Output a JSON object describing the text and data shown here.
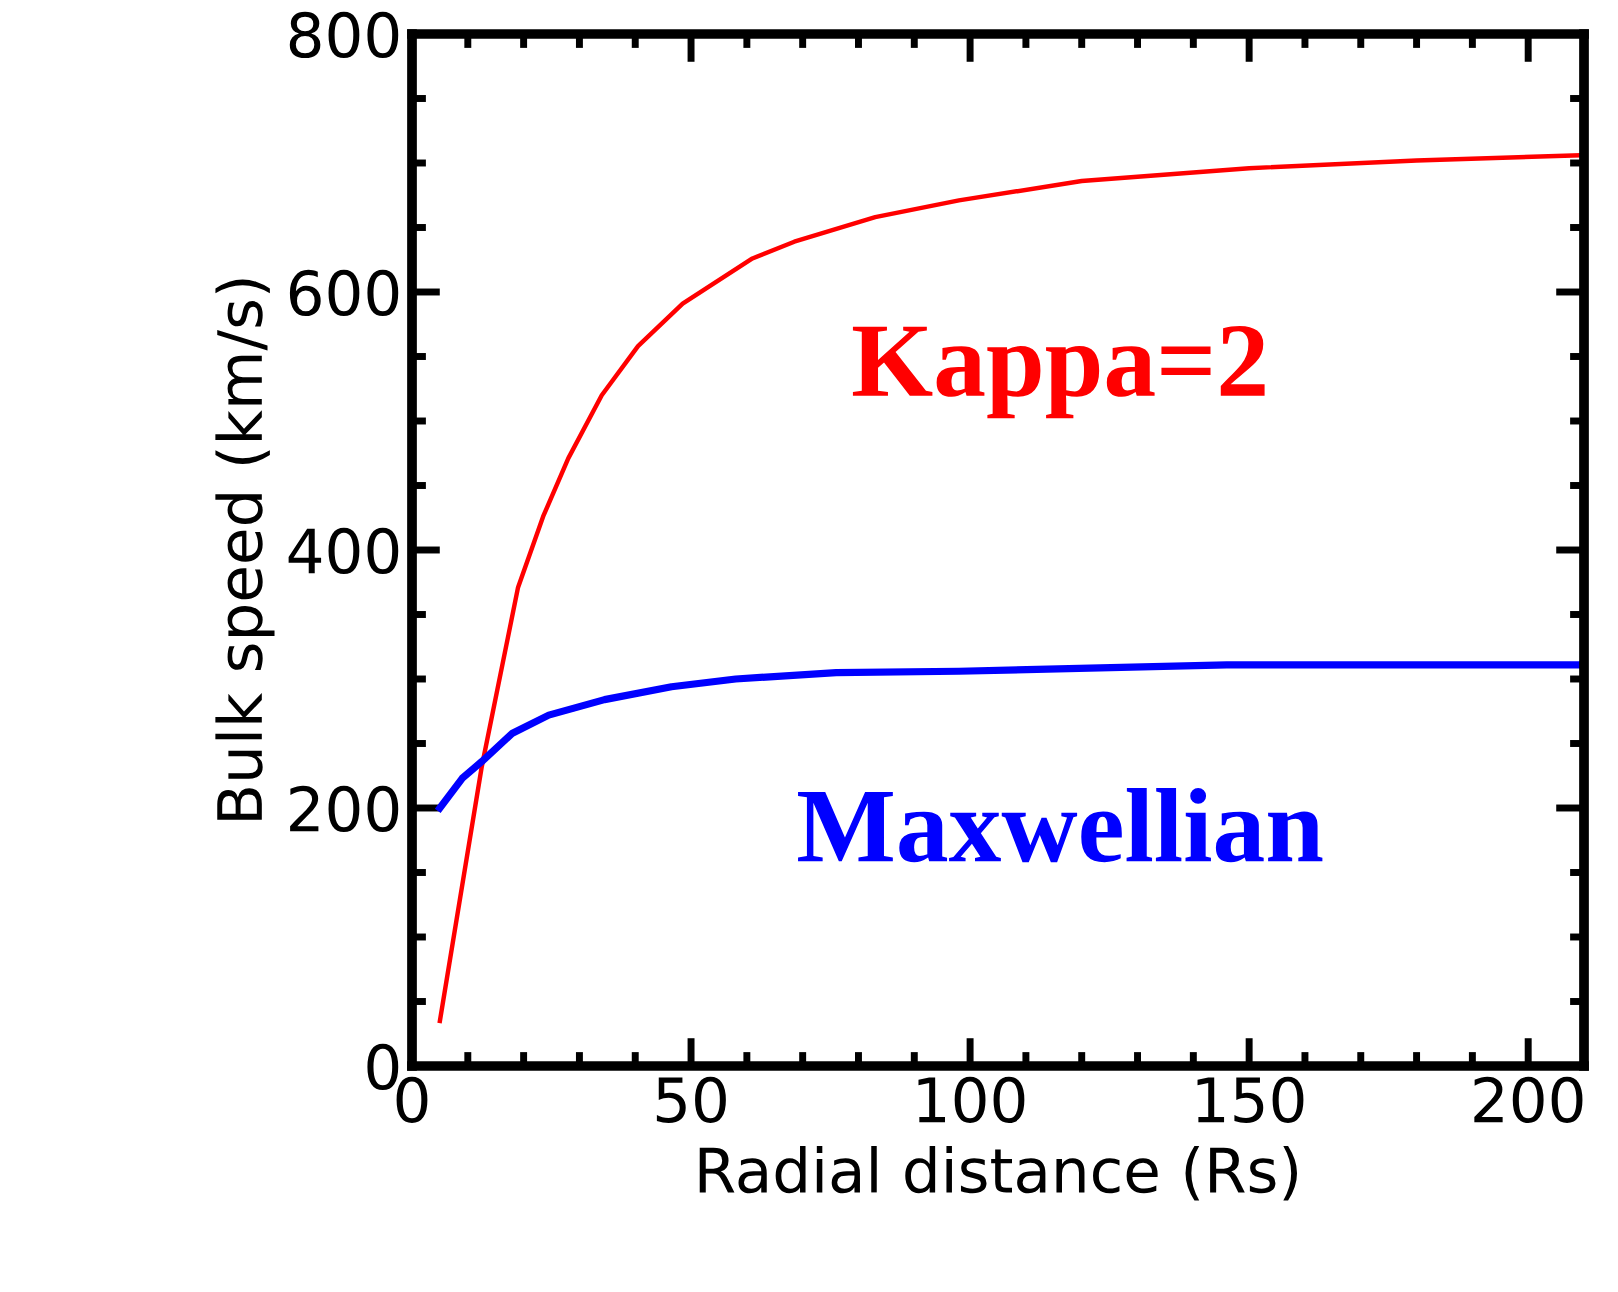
{
  "chart_data": {
    "type": "line",
    "xlabel": "Radial distance (Rs)",
    "ylabel": "Bulk speed (km/s)",
    "xlim": [
      0,
      210
    ],
    "ylim": [
      0,
      800
    ],
    "xticks": [
      0,
      50,
      100,
      150,
      200
    ],
    "yticks": [
      0,
      200,
      400,
      600,
      800
    ],
    "grid": false,
    "legend": false,
    "marker": "none",
    "line_style": "solid",
    "series": [
      {
        "name": "Kappa=2",
        "color": "#ff0000",
        "x": [
          5,
          12.5,
          19,
          23.5,
          28,
          34,
          40.5,
          48.5,
          61,
          68.5,
          83,
          98,
          120,
          150,
          180,
          209
        ],
        "values": [
          35,
          232,
          371,
          426,
          471,
          520,
          558,
          591,
          626,
          639,
          658,
          671,
          686,
          696,
          702,
          706
        ]
      },
      {
        "name": "Maxwellian",
        "color": "#0000ff",
        "x": [
          5,
          9,
          12.5,
          18,
          24.5,
          34.5,
          46.5,
          58,
          76,
          98,
          146,
          209
        ],
        "values": [
          200,
          223,
          236,
          258,
          272,
          284,
          294,
          300,
          305,
          306,
          311,
          311
        ]
      }
    ]
  }
}
